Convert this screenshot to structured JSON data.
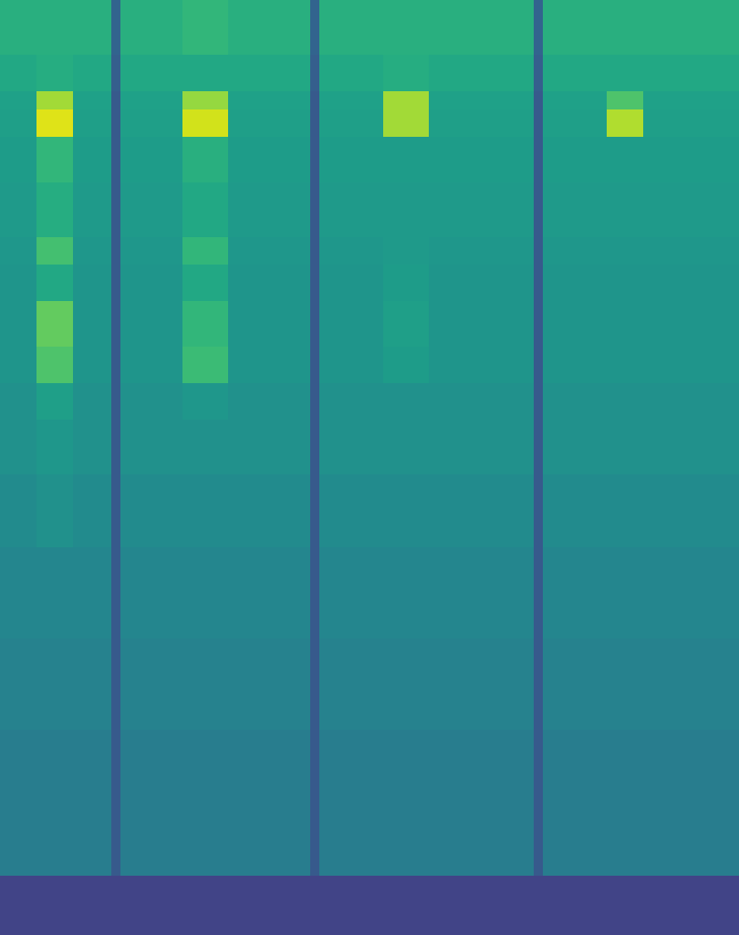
{
  "chart_data": {
    "type": "heatmap",
    "color": "viridis",
    "tick_labels": false,
    "xlim": [
      0,
      810
    ],
    "ylim": [
      0,
      1025
    ],
    "zlim": [
      0,
      1
    ],
    "x_edges": [
      0,
      40,
      80,
      122,
      132,
      200,
      250,
      340,
      350,
      420,
      470,
      585,
      595,
      665,
      705,
      810
    ],
    "y_edges": [
      0,
      65,
      225,
      325,
      425,
      505,
      565,
      605,
      645,
      695,
      735,
      765,
      825,
      875,
      905,
      925,
      965,
      1025
    ],
    "values": [
      [
        0.2,
        0.2,
        0.2,
        0.2,
        0.2,
        0.2,
        0.2,
        0.2,
        0.2,
        0.2,
        0.2,
        0.2,
        0.2,
        0.2,
        0.2
      ],
      [
        0.42,
        0.42,
        0.42,
        0.28,
        0.42,
        0.42,
        0.42,
        0.28,
        0.42,
        0.42,
        0.42,
        0.28,
        0.42,
        0.42,
        0.42
      ],
      [
        0.44,
        0.44,
        0.44,
        0.28,
        0.44,
        0.44,
        0.44,
        0.28,
        0.44,
        0.44,
        0.44,
        0.28,
        0.44,
        0.44,
        0.44
      ],
      [
        0.46,
        0.46,
        0.46,
        0.28,
        0.46,
        0.46,
        0.46,
        0.28,
        0.46,
        0.46,
        0.46,
        0.28,
        0.46,
        0.46,
        0.46
      ],
      [
        0.48,
        0.5,
        0.48,
        0.28,
        0.48,
        0.48,
        0.48,
        0.28,
        0.48,
        0.48,
        0.48,
        0.28,
        0.48,
        0.48,
        0.48
      ],
      [
        0.5,
        0.53,
        0.5,
        0.28,
        0.5,
        0.5,
        0.5,
        0.28,
        0.5,
        0.5,
        0.5,
        0.28,
        0.5,
        0.5,
        0.5
      ],
      [
        0.5,
        0.56,
        0.5,
        0.28,
        0.5,
        0.53,
        0.5,
        0.28,
        0.5,
        0.5,
        0.5,
        0.28,
        0.5,
        0.5,
        0.5
      ],
      [
        0.52,
        0.72,
        0.52,
        0.28,
        0.52,
        0.68,
        0.52,
        0.28,
        0.52,
        0.55,
        0.52,
        0.28,
        0.52,
        0.52,
        0.52
      ],
      [
        0.52,
        0.76,
        0.52,
        0.28,
        0.52,
        0.66,
        0.52,
        0.28,
        0.52,
        0.56,
        0.52,
        0.28,
        0.52,
        0.52,
        0.52
      ],
      [
        0.52,
        0.6,
        0.52,
        0.28,
        0.52,
        0.6,
        0.52,
        0.28,
        0.52,
        0.55,
        0.52,
        0.28,
        0.52,
        0.52,
        0.52
      ],
      [
        0.53,
        0.7,
        0.53,
        0.28,
        0.53,
        0.66,
        0.53,
        0.28,
        0.53,
        0.54,
        0.53,
        0.28,
        0.53,
        0.53,
        0.53
      ],
      [
        0.54,
        0.62,
        0.54,
        0.28,
        0.54,
        0.6,
        0.54,
        0.28,
        0.54,
        0.54,
        0.54,
        0.28,
        0.54,
        0.54,
        0.54
      ],
      [
        0.55,
        0.66,
        0.55,
        0.28,
        0.55,
        0.63,
        0.55,
        0.28,
        0.55,
        0.55,
        0.55,
        0.28,
        0.55,
        0.55,
        0.55
      ],
      [
        0.56,
        0.95,
        0.56,
        0.28,
        0.56,
        0.93,
        0.56,
        0.28,
        0.56,
        0.86,
        0.56,
        0.28,
        0.56,
        0.88,
        0.56
      ],
      [
        0.57,
        0.86,
        0.57,
        0.28,
        0.57,
        0.84,
        0.57,
        0.28,
        0.57,
        0.86,
        0.57,
        0.28,
        0.57,
        0.72,
        0.57
      ],
      [
        0.6,
        0.62,
        0.6,
        0.3,
        0.6,
        0.6,
        0.6,
        0.3,
        0.6,
        0.62,
        0.6,
        0.3,
        0.6,
        0.6,
        0.6
      ],
      [
        0.63,
        0.63,
        0.63,
        0.32,
        0.63,
        0.66,
        0.63,
        0.32,
        0.63,
        0.63,
        0.63,
        0.32,
        0.63,
        0.63,
        0.63
      ]
    ]
  }
}
